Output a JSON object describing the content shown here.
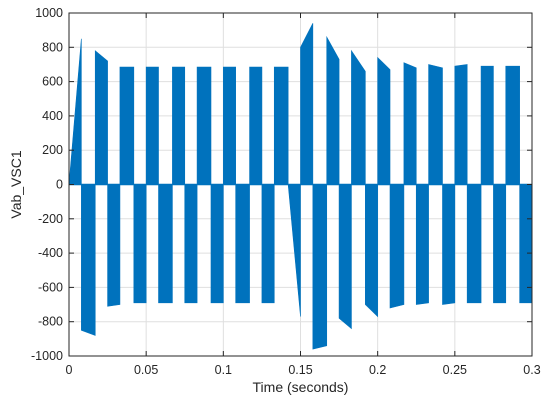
{
  "chart_data": {
    "type": "line",
    "xlabel": "Time (seconds)",
    "ylabel": "Vab_VSC1",
    "xlim": [
      0,
      0.3
    ],
    "ylim": [
      -1000,
      1000
    ],
    "x_ticks": [
      0,
      0.05,
      0.1,
      0.15,
      0.2,
      0.25,
      0.3
    ],
    "x_tick_labels": [
      "0",
      "0.05",
      "0.1",
      "0.15",
      "0.2",
      "0.25",
      "0.3"
    ],
    "y_ticks": [
      1000,
      800,
      600,
      400,
      200,
      0,
      -200,
      -400,
      -600,
      -800,
      -1000
    ],
    "y_tick_labels": [
      "1000",
      "800",
      "600",
      "400",
      "200",
      "0",
      "-200",
      "-400",
      "-600",
      "-800",
      "-1000"
    ],
    "grid": true,
    "line_color": "#0072BD",
    "series": [
      {
        "pulses": [
          {
            "x_start": 0.0,
            "x_end": 0.008,
            "v_start": 0,
            "v_end": 850
          },
          {
            "x_start": 0.008,
            "x_end": 0.017,
            "v_start": -850,
            "v_end": -880
          },
          {
            "x_start": 0.017,
            "x_end": 0.025,
            "v_start": 780,
            "v_end": 720
          },
          {
            "x_start": 0.025,
            "x_end": 0.033,
            "v_start": -710,
            "v_end": -700
          },
          {
            "x_start": 0.033,
            "x_end": 0.042,
            "v_start": 685,
            "v_end": 685
          },
          {
            "x_start": 0.042,
            "x_end": 0.05,
            "v_start": -690,
            "v_end": -690
          },
          {
            "x_start": 0.05,
            "x_end": 0.058,
            "v_start": 685,
            "v_end": 685
          },
          {
            "x_start": 0.058,
            "x_end": 0.067,
            "v_start": -690,
            "v_end": -690
          },
          {
            "x_start": 0.067,
            "x_end": 0.075,
            "v_start": 685,
            "v_end": 685
          },
          {
            "x_start": 0.075,
            "x_end": 0.083,
            "v_start": -690,
            "v_end": -690
          },
          {
            "x_start": 0.083,
            "x_end": 0.092,
            "v_start": 685,
            "v_end": 685
          },
          {
            "x_start": 0.092,
            "x_end": 0.1,
            "v_start": -690,
            "v_end": -690
          },
          {
            "x_start": 0.1,
            "x_end": 0.108,
            "v_start": 685,
            "v_end": 685
          },
          {
            "x_start": 0.108,
            "x_end": 0.117,
            "v_start": -690,
            "v_end": -690
          },
          {
            "x_start": 0.117,
            "x_end": 0.125,
            "v_start": 685,
            "v_end": 685
          },
          {
            "x_start": 0.125,
            "x_end": 0.133,
            "v_start": -690,
            "v_end": -690
          },
          {
            "x_start": 0.133,
            "x_end": 0.142,
            "v_start": 685,
            "v_end": 685
          },
          {
            "x_start": 0.142,
            "x_end": 0.15,
            "v_start": 0,
            "v_end": -770
          },
          {
            "x_start": 0.15,
            "x_end": 0.158,
            "v_start": 800,
            "v_end": 940
          },
          {
            "x_start": 0.158,
            "x_end": 0.167,
            "v_start": -960,
            "v_end": -940
          },
          {
            "x_start": 0.167,
            "x_end": 0.175,
            "v_start": 860,
            "v_end": 730
          },
          {
            "x_start": 0.175,
            "x_end": 0.183,
            "v_start": -780,
            "v_end": -840
          },
          {
            "x_start": 0.183,
            "x_end": 0.192,
            "v_start": 780,
            "v_end": 660
          },
          {
            "x_start": 0.192,
            "x_end": 0.2,
            "v_start": -700,
            "v_end": -770
          },
          {
            "x_start": 0.2,
            "x_end": 0.208,
            "v_start": 740,
            "v_end": 670
          },
          {
            "x_start": 0.208,
            "x_end": 0.217,
            "v_start": -720,
            "v_end": -700
          },
          {
            "x_start": 0.217,
            "x_end": 0.225,
            "v_start": 710,
            "v_end": 680
          },
          {
            "x_start": 0.225,
            "x_end": 0.233,
            "v_start": -700,
            "v_end": -690
          },
          {
            "x_start": 0.233,
            "x_end": 0.242,
            "v_start": 700,
            "v_end": 680
          },
          {
            "x_start": 0.242,
            "x_end": 0.25,
            "v_start": -700,
            "v_end": -690
          },
          {
            "x_start": 0.25,
            "x_end": 0.258,
            "v_start": 690,
            "v_end": 700
          },
          {
            "x_start": 0.258,
            "x_end": 0.267,
            "v_start": -690,
            "v_end": -690
          },
          {
            "x_start": 0.267,
            "x_end": 0.275,
            "v_start": 690,
            "v_end": 690
          },
          {
            "x_start": 0.275,
            "x_end": 0.283,
            "v_start": -690,
            "v_end": -690
          },
          {
            "x_start": 0.283,
            "x_end": 0.292,
            "v_start": 690,
            "v_end": 690
          },
          {
            "x_start": 0.292,
            "x_end": 0.3,
            "v_start": -690,
            "v_end": -690
          }
        ]
      }
    ]
  }
}
